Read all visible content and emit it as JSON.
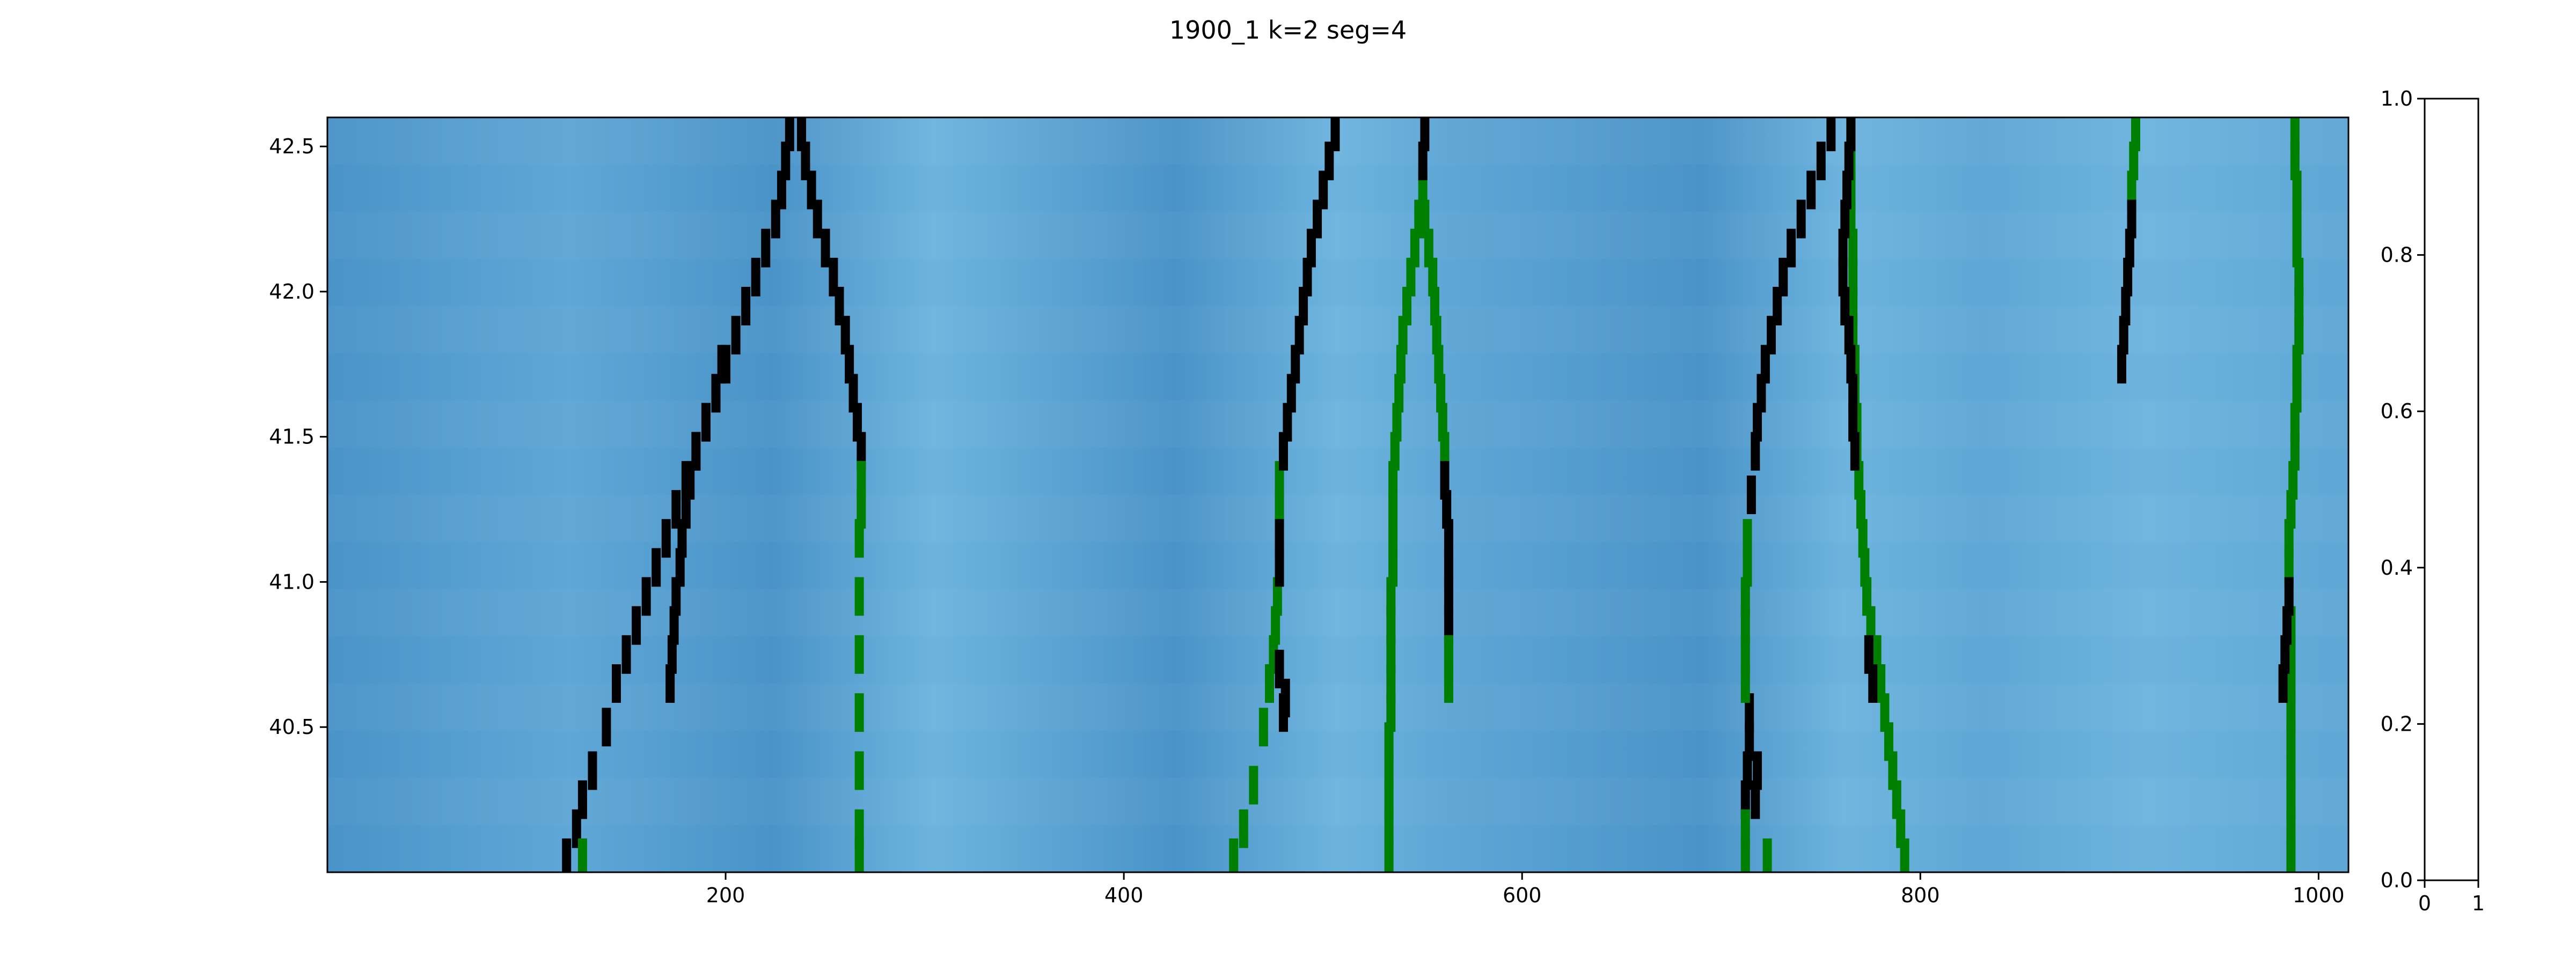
{
  "figure": {
    "title": "1900_1 k=2   seg=4"
  },
  "chart_data": [
    {
      "type": "heatmap",
      "title": "1900_1 k=2   seg=4",
      "xlabel": "",
      "ylabel": "",
      "xlim": [
        0,
        1015
      ],
      "ylim": [
        40.0,
        42.6
      ],
      "xticks": [
        200,
        400,
        600,
        800,
        1000
      ],
      "yticks": [
        40.5,
        41.0,
        41.5,
        42.0,
        42.5
      ],
      "grid": false,
      "background_colormap": [
        "#4a93c8",
        "#5ea7d6",
        "#6cb4de"
      ],
      "series": [
        {
          "color": "#000000",
          "points": [
            [
              120,
              40.05
            ],
            [
              125,
              40.15
            ],
            [
              128,
              40.25
            ],
            [
              133,
              40.35
            ],
            [
              140,
              40.5
            ],
            [
              145,
              40.65
            ],
            [
              150,
              40.75
            ],
            [
              155,
              40.85
            ],
            [
              160,
              40.95
            ],
            [
              165,
              41.05
            ],
            [
              170,
              41.15
            ],
            [
              175,
              41.25
            ],
            [
              180,
              41.35
            ],
            [
              185,
              41.45
            ],
            [
              190,
              41.55
            ],
            [
              195,
              41.65
            ],
            [
              200,
              41.75
            ],
            [
              205,
              41.85
            ],
            [
              210,
              41.95
            ],
            [
              215,
              42.05
            ],
            [
              220,
              42.15
            ],
            [
              225,
              42.25
            ],
            [
              228,
              42.35
            ],
            [
              230,
              42.45
            ],
            [
              232,
              42.55
            ]
          ]
        },
        {
          "color": "#000000",
          "points": [
            [
              172,
              40.65
            ],
            [
              173,
              40.75
            ],
            [
              174,
              40.85
            ],
            [
              175,
              40.95
            ],
            [
              177,
              41.05
            ],
            [
              178,
              41.15
            ],
            [
              180,
              41.25
            ],
            [
              182,
              41.35
            ],
            [
              185,
              41.45
            ],
            [
              190,
              41.55
            ],
            [
              195,
              41.65
            ],
            [
              198,
              41.75
            ]
          ]
        },
        {
          "color": "#000000",
          "points": [
            [
              238,
              42.55
            ],
            [
              240,
              42.45
            ],
            [
              243,
              42.35
            ],
            [
              246,
              42.25
            ],
            [
              250,
              42.15
            ],
            [
              254,
              42.05
            ],
            [
              257,
              41.95
            ],
            [
              260,
              41.85
            ],
            [
              262,
              41.75
            ],
            [
              264,
              41.65
            ],
            [
              266,
              41.55
            ],
            [
              268,
              41.45
            ]
          ]
        },
        {
          "color": "#008000",
          "points": [
            [
              128,
              40.05
            ],
            [
              268,
              41.35
            ],
            [
              268,
              41.25
            ],
            [
              267,
              41.15
            ],
            [
              267,
              40.95
            ],
            [
              267,
              40.75
            ],
            [
              267,
              40.55
            ],
            [
              267,
              40.35
            ],
            [
              267,
              40.15
            ],
            [
              267,
              40.05
            ]
          ]
        },
        {
          "color": "#008000",
          "points": [
            [
              455,
              40.05
            ],
            [
              460,
              40.15
            ],
            [
              465,
              40.3
            ],
            [
              470,
              40.5
            ],
            [
              473,
              40.65
            ],
            [
              475,
              40.75
            ],
            [
              476,
              40.85
            ],
            [
              477,
              40.95
            ],
            [
              478,
              41.25
            ],
            [
              478,
              41.35
            ]
          ]
        },
        {
          "color": "#000000",
          "points": [
            [
              478,
              41.05
            ],
            [
              478,
              41.15
            ],
            [
              480,
              41.45
            ],
            [
              482,
              41.55
            ],
            [
              484,
              41.65
            ],
            [
              486,
              41.75
            ],
            [
              488,
              41.85
            ],
            [
              490,
              41.95
            ],
            [
              492,
              42.05
            ],
            [
              494,
              42.15
            ],
            [
              497,
              42.25
            ],
            [
              500,
              42.35
            ],
            [
              503,
              42.45
            ],
            [
              506,
              42.55
            ]
          ]
        },
        {
          "color": "#000000",
          "points": [
            [
              478,
              40.7
            ],
            [
              480,
              40.55
            ],
            [
              481,
              40.6
            ]
          ]
        },
        {
          "color": "#008000",
          "points": [
            [
              533,
              40.05
            ],
            [
              533,
              40.15
            ],
            [
              533,
              40.25
            ],
            [
              533,
              40.35
            ],
            [
              533,
              40.45
            ],
            [
              534,
              40.55
            ],
            [
              534,
              40.65
            ],
            [
              534,
              40.75
            ],
            [
              534,
              40.85
            ],
            [
              534,
              40.95
            ],
            [
              535,
              41.05
            ],
            [
              535,
              41.15
            ],
            [
              535,
              41.25
            ],
            [
              535,
              41.35
            ],
            [
              536,
              41.45
            ],
            [
              537,
              41.55
            ],
            [
              538,
              41.65
            ],
            [
              539,
              41.75
            ],
            [
              540,
              41.85
            ],
            [
              542,
              41.95
            ],
            [
              544,
              42.05
            ],
            [
              546,
              42.15
            ],
            [
              548,
              42.25
            ],
            [
              550,
              42.35
            ]
          ]
        },
        {
          "color": "#000000",
          "points": [
            [
              550,
              42.45
            ],
            [
              551,
              42.55
            ]
          ]
        },
        {
          "color": "#008000",
          "points": [
            [
              551,
              42.25
            ],
            [
              553,
              42.15
            ],
            [
              555,
              42.05
            ],
            [
              556,
              41.95
            ],
            [
              557,
              41.85
            ],
            [
              558,
              41.75
            ],
            [
              559,
              41.65
            ],
            [
              560,
              41.55
            ],
            [
              561,
              41.45
            ]
          ]
        },
        {
          "color": "#000000",
          "points": [
            [
              561,
              41.35
            ],
            [
              562,
              41.25
            ],
            [
              563,
              41.15
            ],
            [
              563,
              41.05
            ],
            [
              563,
              40.95
            ],
            [
              563,
              40.85
            ]
          ]
        },
        {
          "color": "#008000",
          "points": [
            [
              563,
              40.75
            ],
            [
              563,
              40.65
            ]
          ]
        },
        {
          "color": "#000000",
          "points": [
            [
              712,
              40.25
            ],
            [
              713,
              40.35
            ],
            [
              714,
              40.45
            ],
            [
              714,
              40.55
            ],
            [
              715,
              41.3
            ],
            [
              717,
              41.45
            ],
            [
              718,
              41.55
            ],
            [
              720,
              41.65
            ],
            [
              722,
              41.75
            ],
            [
              725,
              41.85
            ],
            [
              728,
              41.95
            ],
            [
              731,
              42.05
            ],
            [
              735,
              42.15
            ],
            [
              740,
              42.25
            ],
            [
              745,
              42.35
            ],
            [
              750,
              42.45
            ],
            [
              755,
              42.55
            ]
          ]
        },
        {
          "color": "#008000",
          "points": [
            [
              712,
              40.05
            ],
            [
              712,
              40.15
            ],
            [
              712,
              40.65
            ],
            [
              712,
              40.75
            ],
            [
              712,
              40.85
            ],
            [
              712,
              40.95
            ],
            [
              713,
              41.05
            ],
            [
              713,
              41.15
            ]
          ]
        },
        {
          "color": "#000000",
          "points": [
            [
              717,
              40.25
            ],
            [
              718,
              40.35
            ]
          ]
        },
        {
          "color": "#008000",
          "points": [
            [
              723,
              40.05
            ],
            [
              765,
              42.55
            ],
            [
              765,
              42.45
            ],
            [
              765,
              42.35
            ],
            [
              765,
              42.25
            ],
            [
              766,
              42.15
            ],
            [
              766,
              42.05
            ],
            [
              766,
              41.95
            ],
            [
              766,
              41.85
            ],
            [
              767,
              41.75
            ],
            [
              767,
              41.65
            ],
            [
              768,
              41.55
            ],
            [
              768,
              41.45
            ],
            [
              769,
              41.35
            ],
            [
              770,
              41.25
            ],
            [
              771,
              41.15
            ],
            [
              772,
              41.05
            ],
            [
              773,
              40.95
            ],
            [
              775,
              40.85
            ],
            [
              778,
              40.75
            ],
            [
              780,
              40.65
            ],
            [
              782,
              40.55
            ],
            [
              784,
              40.45
            ],
            [
              786,
              40.35
            ],
            [
              788,
              40.25
            ],
            [
              790,
              40.15
            ],
            [
              792,
              40.05
            ]
          ]
        },
        {
          "color": "#000000",
          "points": [
            [
              765,
              42.55
            ],
            [
              764,
              42.45
            ],
            [
              763,
              42.35
            ],
            [
              762,
              42.25
            ],
            [
              761,
              42.15
            ],
            [
              761,
              42.05
            ],
            [
              762,
              41.95
            ],
            [
              764,
              41.85
            ],
            [
              765,
              41.75
            ],
            [
              766,
              41.65
            ],
            [
              766,
              41.55
            ],
            [
              767,
              41.45
            ],
            [
              774,
              40.75
            ],
            [
              776,
              40.65
            ]
          ]
        },
        {
          "color": "#008000",
          "points": [
            [
              908,
              42.55
            ],
            [
              907,
              42.45
            ],
            [
              906,
              42.35
            ]
          ]
        },
        {
          "color": "#000000",
          "points": [
            [
              906,
              42.25
            ],
            [
              905,
              42.15
            ],
            [
              904,
              42.05
            ],
            [
              903,
              41.95
            ],
            [
              902,
              41.85
            ],
            [
              901,
              41.75
            ]
          ]
        },
        {
          "color": "#008000",
          "points": [
            [
              988,
              42.55
            ],
            [
              988,
              42.45
            ],
            [
              989,
              42.35
            ],
            [
              989,
              42.25
            ],
            [
              989,
              42.15
            ],
            [
              990,
              42.05
            ],
            [
              990,
              41.95
            ],
            [
              990,
              41.85
            ],
            [
              989,
              41.75
            ],
            [
              989,
              41.65
            ],
            [
              988,
              41.55
            ],
            [
              988,
              41.45
            ],
            [
              987,
              41.35
            ],
            [
              986,
              41.25
            ],
            [
              985,
              41.15
            ],
            [
              985,
              41.05
            ],
            [
              986,
              40.85
            ],
            [
              986,
              40.75
            ],
            [
              986,
              40.65
            ],
            [
              986,
              40.55
            ],
            [
              986,
              40.45
            ],
            [
              986,
              40.35
            ],
            [
              986,
              40.25
            ],
            [
              986,
              40.15
            ],
            [
              986,
              40.05
            ]
          ]
        },
        {
          "color": "#000000",
          "points": [
            [
              985,
              40.95
            ],
            [
              984,
              40.85
            ],
            [
              983,
              40.75
            ],
            [
              982,
              40.65
            ]
          ]
        }
      ]
    },
    {
      "type": "line",
      "title": "",
      "xlim": [
        0,
        1
      ],
      "ylim": [
        0.0,
        1.0
      ],
      "xticks": [
        "0",
        "1"
      ],
      "yticks": [
        "0.0",
        "0.2",
        "0.4",
        "0.6",
        "0.8",
        "1.0"
      ],
      "grid": false,
      "series": []
    }
  ]
}
